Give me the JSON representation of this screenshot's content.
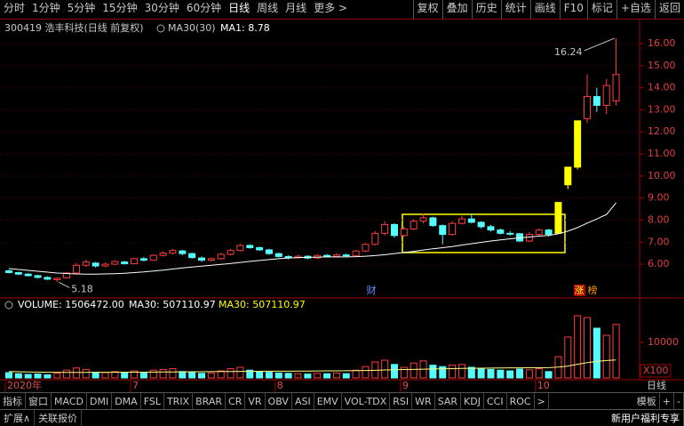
{
  "toolbar": {
    "left": [
      "分时",
      "1分钟",
      "5分钟",
      "15分钟",
      "30分钟",
      "60分钟",
      "日线",
      "周线",
      "月线",
      "更多 >"
    ],
    "active": 6,
    "right": [
      "复权",
      "叠加",
      "历史",
      "统计",
      "画线",
      "F10",
      "标记",
      "+自选",
      "返回"
    ]
  },
  "info": {
    "stock": "300419 浩丰科技(日线 前复权)",
    "indicator": "MA30(30)",
    "ma_value": "MA1: 8.78"
  },
  "chart_data": [
    {
      "type": "candlestick",
      "categories": [
        "2020年",
        null,
        null,
        null,
        null,
        null,
        null,
        null,
        null,
        null,
        null,
        null,
        null,
        "7",
        null,
        null,
        null,
        null,
        null,
        null,
        null,
        null,
        null,
        null,
        null,
        null,
        null,
        null,
        "8",
        null,
        null,
        null,
        null,
        null,
        null,
        null,
        null,
        null,
        null,
        null,
        null,
        "9",
        null,
        null,
        null,
        null,
        null,
        null,
        null,
        null,
        null,
        null,
        null,
        null,
        null,
        "10",
        null,
        null,
        null,
        null,
        null,
        null,
        null,
        null
      ],
      "candles": [
        [
          5.7,
          5.62,
          5.75,
          5.58
        ],
        [
          5.62,
          5.55,
          5.66,
          5.5
        ],
        [
          5.55,
          5.48,
          5.6,
          5.44
        ],
        [
          5.48,
          5.4,
          5.52,
          5.35
        ],
        [
          5.4,
          5.32,
          5.45,
          5.28
        ],
        [
          5.3,
          5.36,
          5.4,
          5.18
        ],
        [
          5.38,
          5.6,
          5.65,
          5.35
        ],
        [
          5.6,
          5.95,
          6.05,
          5.55
        ],
        [
          5.95,
          6.1,
          6.2,
          5.88
        ],
        [
          6.05,
          5.92,
          6.1,
          5.85
        ],
        [
          5.92,
          6.0,
          6.08,
          5.86
        ],
        [
          6.0,
          6.12,
          6.18,
          5.95
        ],
        [
          6.1,
          6.02,
          6.15,
          5.98
        ],
        [
          6.02,
          6.25,
          6.3,
          6.0
        ],
        [
          6.25,
          6.18,
          6.32,
          6.12
        ],
        [
          6.18,
          6.4,
          6.45,
          6.15
        ],
        [
          6.4,
          6.5,
          6.58,
          6.35
        ],
        [
          6.5,
          6.62,
          6.7,
          6.45
        ],
        [
          6.6,
          6.48,
          6.65,
          6.4
        ],
        [
          6.48,
          6.3,
          6.52,
          6.25
        ],
        [
          6.28,
          6.18,
          6.35,
          6.1
        ],
        [
          6.18,
          6.25,
          6.3,
          6.12
        ],
        [
          6.25,
          6.45,
          6.5,
          6.2
        ],
        [
          6.45,
          6.62,
          6.7,
          6.4
        ],
        [
          6.62,
          6.85,
          6.92,
          6.58
        ],
        [
          6.85,
          6.75,
          6.9,
          6.7
        ],
        [
          6.75,
          6.65,
          6.8,
          6.6
        ],
        [
          6.65,
          6.48,
          6.7,
          6.42
        ],
        [
          6.48,
          6.35,
          6.52,
          6.3
        ],
        [
          6.35,
          6.3,
          6.4,
          6.22
        ],
        [
          6.3,
          6.36,
          6.42,
          6.25
        ],
        [
          6.36,
          6.28,
          6.4,
          6.22
        ],
        [
          6.28,
          6.4,
          6.45,
          6.25
        ],
        [
          6.4,
          6.35,
          6.46,
          6.3
        ],
        [
          6.35,
          6.42,
          6.5,
          6.3
        ],
        [
          6.42,
          6.38,
          6.48,
          6.32
        ],
        [
          6.38,
          6.6,
          6.65,
          6.35
        ],
        [
          6.6,
          6.9,
          6.95,
          6.55
        ],
        [
          6.9,
          7.4,
          7.5,
          6.85
        ],
        [
          7.4,
          7.8,
          7.95,
          7.3
        ],
        [
          7.8,
          7.3,
          7.85,
          7.2
        ],
        [
          7.3,
          7.6,
          7.7,
          7.25
        ],
        [
          7.6,
          7.95,
          8.05,
          7.55
        ],
        [
          7.95,
          8.1,
          8.3,
          7.85
        ],
        [
          8.1,
          7.75,
          8.15,
          7.7
        ],
        [
          7.75,
          7.35,
          7.8,
          6.9
        ],
        [
          7.35,
          7.85,
          7.95,
          7.3
        ],
        [
          7.85,
          8.05,
          8.2,
          7.8
        ],
        [
          8.05,
          7.9,
          8.3,
          7.85
        ],
        [
          7.9,
          7.7,
          7.95,
          7.62
        ],
        [
          7.7,
          7.55,
          7.78,
          7.48
        ],
        [
          7.55,
          7.4,
          7.62,
          7.35
        ],
        [
          7.4,
          7.38,
          7.5,
          7.3
        ],
        [
          7.38,
          7.05,
          7.42,
          7.0
        ],
        [
          7.05,
          7.35,
          7.45,
          7.0
        ],
        [
          7.35,
          7.55,
          7.62,
          7.28
        ],
        [
          7.55,
          7.35,
          7.6,
          7.25
        ],
        [
          7.4,
          8.8,
          8.8,
          7.4
        ],
        [
          9.6,
          10.4,
          10.4,
          9.4
        ],
        [
          10.4,
          12.5,
          12.5,
          10.3
        ],
        [
          12.6,
          13.6,
          14.6,
          12.4
        ],
        [
          13.6,
          13.2,
          14.0,
          12.9
        ],
        [
          13.2,
          14.1,
          14.4,
          12.8
        ],
        [
          13.4,
          14.6,
          16.24,
          13.2
        ]
      ],
      "limit_up": [
        57,
        58,
        59
      ],
      "up_color": "#ff3c3c",
      "down_color": "#54fcfc",
      "limit_up_color": "#ffff00",
      "ma30": {
        "color": "#ffffff",
        "values": [
          5.8,
          5.76,
          5.72,
          5.68,
          5.64,
          5.6,
          5.58,
          5.56,
          5.55,
          5.55,
          5.56,
          5.57,
          5.59,
          5.62,
          5.65,
          5.69,
          5.73,
          5.78,
          5.83,
          5.87,
          5.91,
          5.95,
          5.99,
          6.03,
          6.08,
          6.13,
          6.17,
          6.21,
          6.25,
          6.28,
          6.3,
          6.31,
          6.32,
          6.33,
          6.33,
          6.33,
          6.34,
          6.36,
          6.39,
          6.43,
          6.48,
          6.53,
          6.58,
          6.64,
          6.7,
          6.75,
          6.8,
          6.87,
          6.93,
          6.99,
          7.05,
          7.1,
          7.15,
          7.19,
          7.23,
          7.27,
          7.3,
          7.38,
          7.5,
          7.66,
          7.86,
          8.05,
          8.25,
          8.78
        ]
      },
      "ylim": [
        4.47,
        17.09
      ],
      "yticks": [
        {
          "value": 6,
          "label": "6.00"
        },
        {
          "value": 7,
          "label": "7.00"
        },
        {
          "value": 8,
          "label": "8.00"
        },
        {
          "value": 9,
          "label": "9.00"
        },
        {
          "value": 10,
          "label": "10.00"
        },
        {
          "value": 11,
          "label": "11.00"
        },
        {
          "value": 12,
          "label": "12.00"
        },
        {
          "value": 13,
          "label": "13.00"
        },
        {
          "value": 14,
          "label": "14.00"
        },
        {
          "value": 15,
          "label": "15.00"
        },
        {
          "value": 16,
          "label": "16.00"
        }
      ],
      "grid": true,
      "annotations": {
        "high": "16.24",
        "low": "5.18"
      },
      "x_axis_right": "日线"
    },
    {
      "type": "bar",
      "title": "VOLUME: 1506472.00",
      "ma_labels": [
        "MA30: 507110.97",
        "MA30: 507110.97"
      ],
      "values": [
        1500,
        1200,
        1000,
        1100,
        900,
        1300,
        2200,
        2800,
        2400,
        1600,
        1500,
        1800,
        1400,
        2000,
        1600,
        2200,
        2400,
        2600,
        1800,
        1500,
        1300,
        1400,
        2000,
        2600,
        3000,
        2200,
        1800,
        1600,
        1400,
        1300,
        1200,
        1100,
        1300,
        1200,
        1400,
        1200,
        2200,
        3200,
        4500,
        5000,
        3800,
        3000,
        4200,
        4800,
        3600,
        3200,
        3600,
        3800,
        3000,
        2600,
        2400,
        2200,
        2000,
        2500,
        2300,
        2600,
        1800,
        6000,
        11500,
        17500,
        17000,
        14000,
        12000,
        15065
      ],
      "ma30": {
        "color": "#ffff80",
        "values": [
          1800,
          1750,
          1700,
          1650,
          1600,
          1580,
          1560,
          1560,
          1570,
          1580,
          1590,
          1600,
          1610,
          1620,
          1640,
          1660,
          1680,
          1700,
          1720,
          1740,
          1760,
          1780,
          1800,
          1820,
          1840,
          1860,
          1880,
          1900,
          1910,
          1920,
          1930,
          1950,
          1970,
          1990,
          2010,
          2030,
          2060,
          2100,
          2160,
          2240,
          2300,
          2360,
          2420,
          2480,
          2540,
          2590,
          2640,
          2690,
          2730,
          2760,
          2790,
          2810,
          2830,
          2850,
          2870,
          2890,
          2900,
          3050,
          3350,
          3850,
          4300,
          4650,
          4900,
          5071
        ]
      },
      "ylim": [
        0,
        18750
      ],
      "yticks": [
        10000
      ],
      "unit": "X100"
    }
  ],
  "markers": [
    "财",
    "涨",
    "榜"
  ],
  "indicator_tabs": [
    "指标",
    "窗口",
    "MACD",
    "DMI",
    "DMA",
    "FSL",
    "TRIX",
    "BRAR",
    "CR",
    "VR",
    "OBV",
    "ASI",
    "EMV",
    "VOL-TDX",
    "RSI",
    "WR",
    "SAR",
    "KDJ",
    "CCI",
    "ROC",
    ">"
  ],
  "tabs_right": [
    "模板",
    "+",
    "-"
  ],
  "footer": {
    "left": [
      "扩展∧",
      "关联报价"
    ],
    "right": "新用户福利专享"
  }
}
